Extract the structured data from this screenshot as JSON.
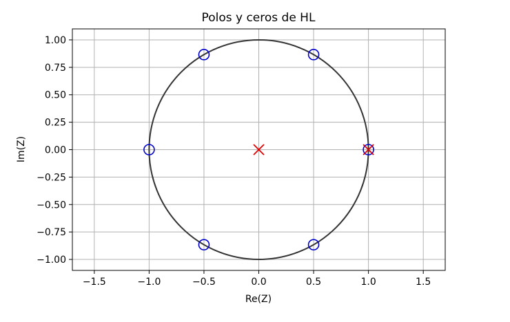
{
  "chart_data": {
    "type": "scatter",
    "title": "Polos y ceros de HL",
    "xlabel": "Re(Z)",
    "ylabel": "Im(Z)",
    "xlim": [
      -1.7,
      1.7
    ],
    "ylim": [
      -1.1,
      1.1
    ],
    "x_ticks": [
      -1.5,
      -1.0,
      -0.5,
      0.0,
      0.5,
      1.0,
      1.5
    ],
    "x_tick_labels": [
      "−1.5",
      "−1.0",
      "−0.5",
      "0.0",
      "0.5",
      "1.0",
      "1.5"
    ],
    "y_ticks": [
      1.0,
      0.75,
      0.5,
      0.25,
      0.0,
      -0.25,
      -0.5,
      -0.75,
      -1.0
    ],
    "y_tick_labels": [
      "1.00",
      "0.75",
      "0.50",
      "0.25",
      "0.00",
      "−0.25",
      "−0.50",
      "−0.75",
      "−1.00"
    ],
    "grid": true,
    "unit_circle": {
      "radius": 1.0,
      "color": "#333333"
    },
    "zeros": {
      "marker": "circle",
      "color": "#0000cc",
      "points": [
        {
          "x": -0.5,
          "y": 0.866
        },
        {
          "x": 0.5,
          "y": 0.866
        },
        {
          "x": -1.0,
          "y": 0.0
        },
        {
          "x": 1.0,
          "y": 0.0
        },
        {
          "x": -0.5,
          "y": -0.866
        },
        {
          "x": 0.5,
          "y": -0.866
        }
      ]
    },
    "poles": {
      "marker": "x",
      "color": "#dd0000",
      "points": [
        {
          "x": 0.0,
          "y": 0.0
        },
        {
          "x": 1.0,
          "y": 0.0
        }
      ]
    }
  }
}
